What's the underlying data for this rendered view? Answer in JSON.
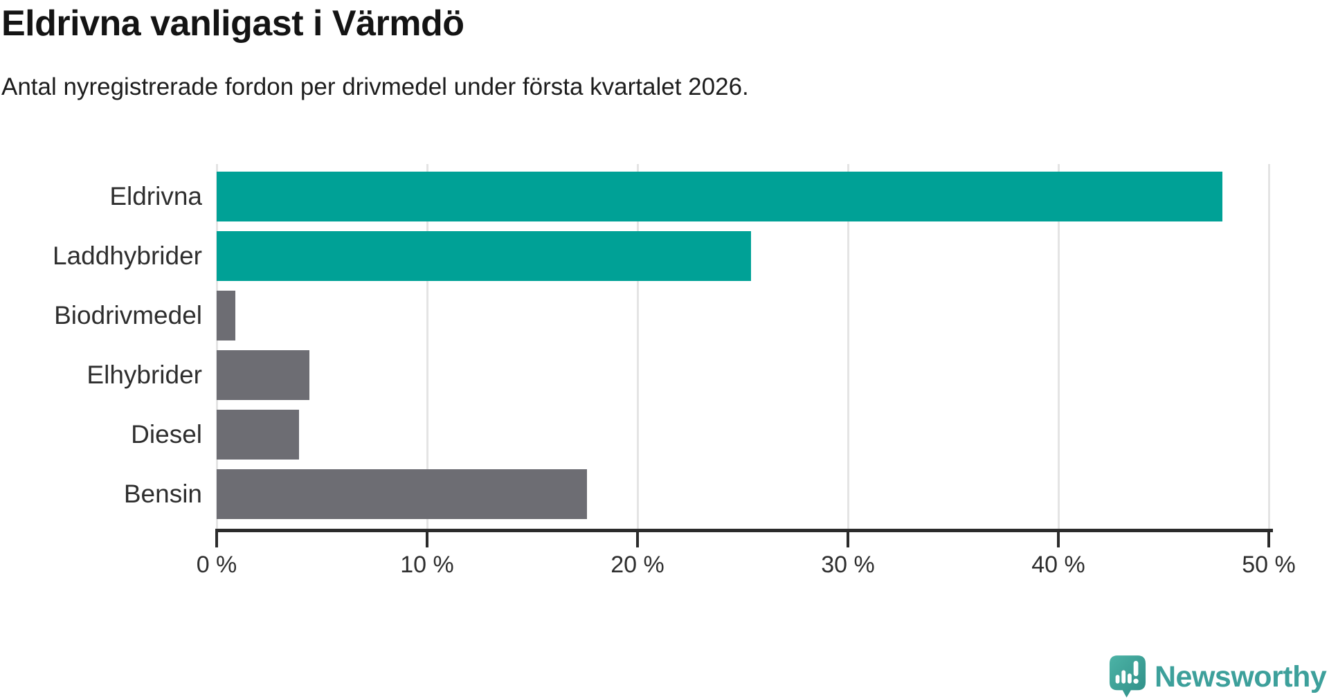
{
  "header": {
    "title": "Eldrivna vanligast i Värmdö",
    "subtitle": "Antal nyregistrerade fordon per drivmedel under första kvartalet 2026."
  },
  "chart_data": {
    "type": "bar",
    "orientation": "horizontal",
    "title": "Eldrivna vanligast i Värmdö",
    "subtitle": "Antal nyregistrerade fordon per drivmedel under första kvartalet 2026.",
    "categories": [
      "Eldrivna",
      "Laddhybrider",
      "Biodrivmedel",
      "Elhybrider",
      "Diesel",
      "Bensin"
    ],
    "values": [
      47.8,
      25.4,
      0.9,
      4.4,
      3.9,
      17.6
    ],
    "unit": "%",
    "xlim": [
      0,
      50
    ],
    "x_tick_values": [
      0,
      10,
      20,
      30,
      40,
      50
    ],
    "x_tick_labels": [
      "0 %",
      "10 %",
      "20 %",
      "30 %",
      "40 %",
      "50 %"
    ],
    "bar_colors": [
      "#00a196",
      "#00a196",
      "#6d6d73",
      "#6d6d73",
      "#6d6d73",
      "#6d6d73"
    ],
    "grid": true,
    "legend": false
  },
  "colors": {
    "accent_teal": "#00a196",
    "bar_gray": "#6d6d73",
    "axis": "#2b2b2b",
    "gridline": "#e4e4e4",
    "text": "#1d1d1d",
    "logo_teal": "#3da09b"
  },
  "branding": {
    "logo_text": "Newsworthy",
    "icon": "newsworthy-speech-bubble-chart-icon"
  }
}
